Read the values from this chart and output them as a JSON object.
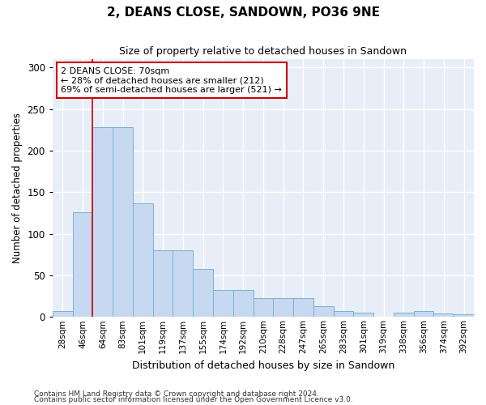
{
  "title": "2, DEANS CLOSE, SANDOWN, PO36 9NE",
  "subtitle": "Size of property relative to detached houses in Sandown",
  "xlabel": "Distribution of detached houses by size in Sandown",
  "ylabel": "Number of detached properties",
  "categories": [
    "28sqm",
    "46sqm",
    "64sqm",
    "83sqm",
    "101sqm",
    "119sqm",
    "137sqm",
    "155sqm",
    "174sqm",
    "192sqm",
    "210sqm",
    "228sqm",
    "247sqm",
    "265sqm",
    "283sqm",
    "301sqm",
    "319sqm",
    "338sqm",
    "356sqm",
    "374sqm",
    "392sqm"
  ],
  "values": [
    7,
    126,
    228,
    228,
    137,
    80,
    80,
    58,
    32,
    32,
    23,
    23,
    23,
    13,
    7,
    5,
    0,
    5,
    7,
    4,
    3
  ],
  "bar_color": "#c6d9f0",
  "bar_edge_color": "#7bafd4",
  "background_color": "#e8eef8",
  "grid_color": "#ffffff",
  "red_line_x": 1.5,
  "annotation_text": "2 DEANS CLOSE: 70sqm\n← 28% of detached houses are smaller (212)\n69% of semi-detached houses are larger (521) →",
  "annotation_box_color": "#ffffff",
  "annotation_box_edge": "#cc0000",
  "ylim": [
    0,
    310
  ],
  "yticks": [
    0,
    50,
    100,
    150,
    200,
    250,
    300
  ],
  "footer1": "Contains HM Land Registry data © Crown copyright and database right 2024.",
  "footer2": "Contains public sector information licensed under the Open Government Licence v3.0."
}
